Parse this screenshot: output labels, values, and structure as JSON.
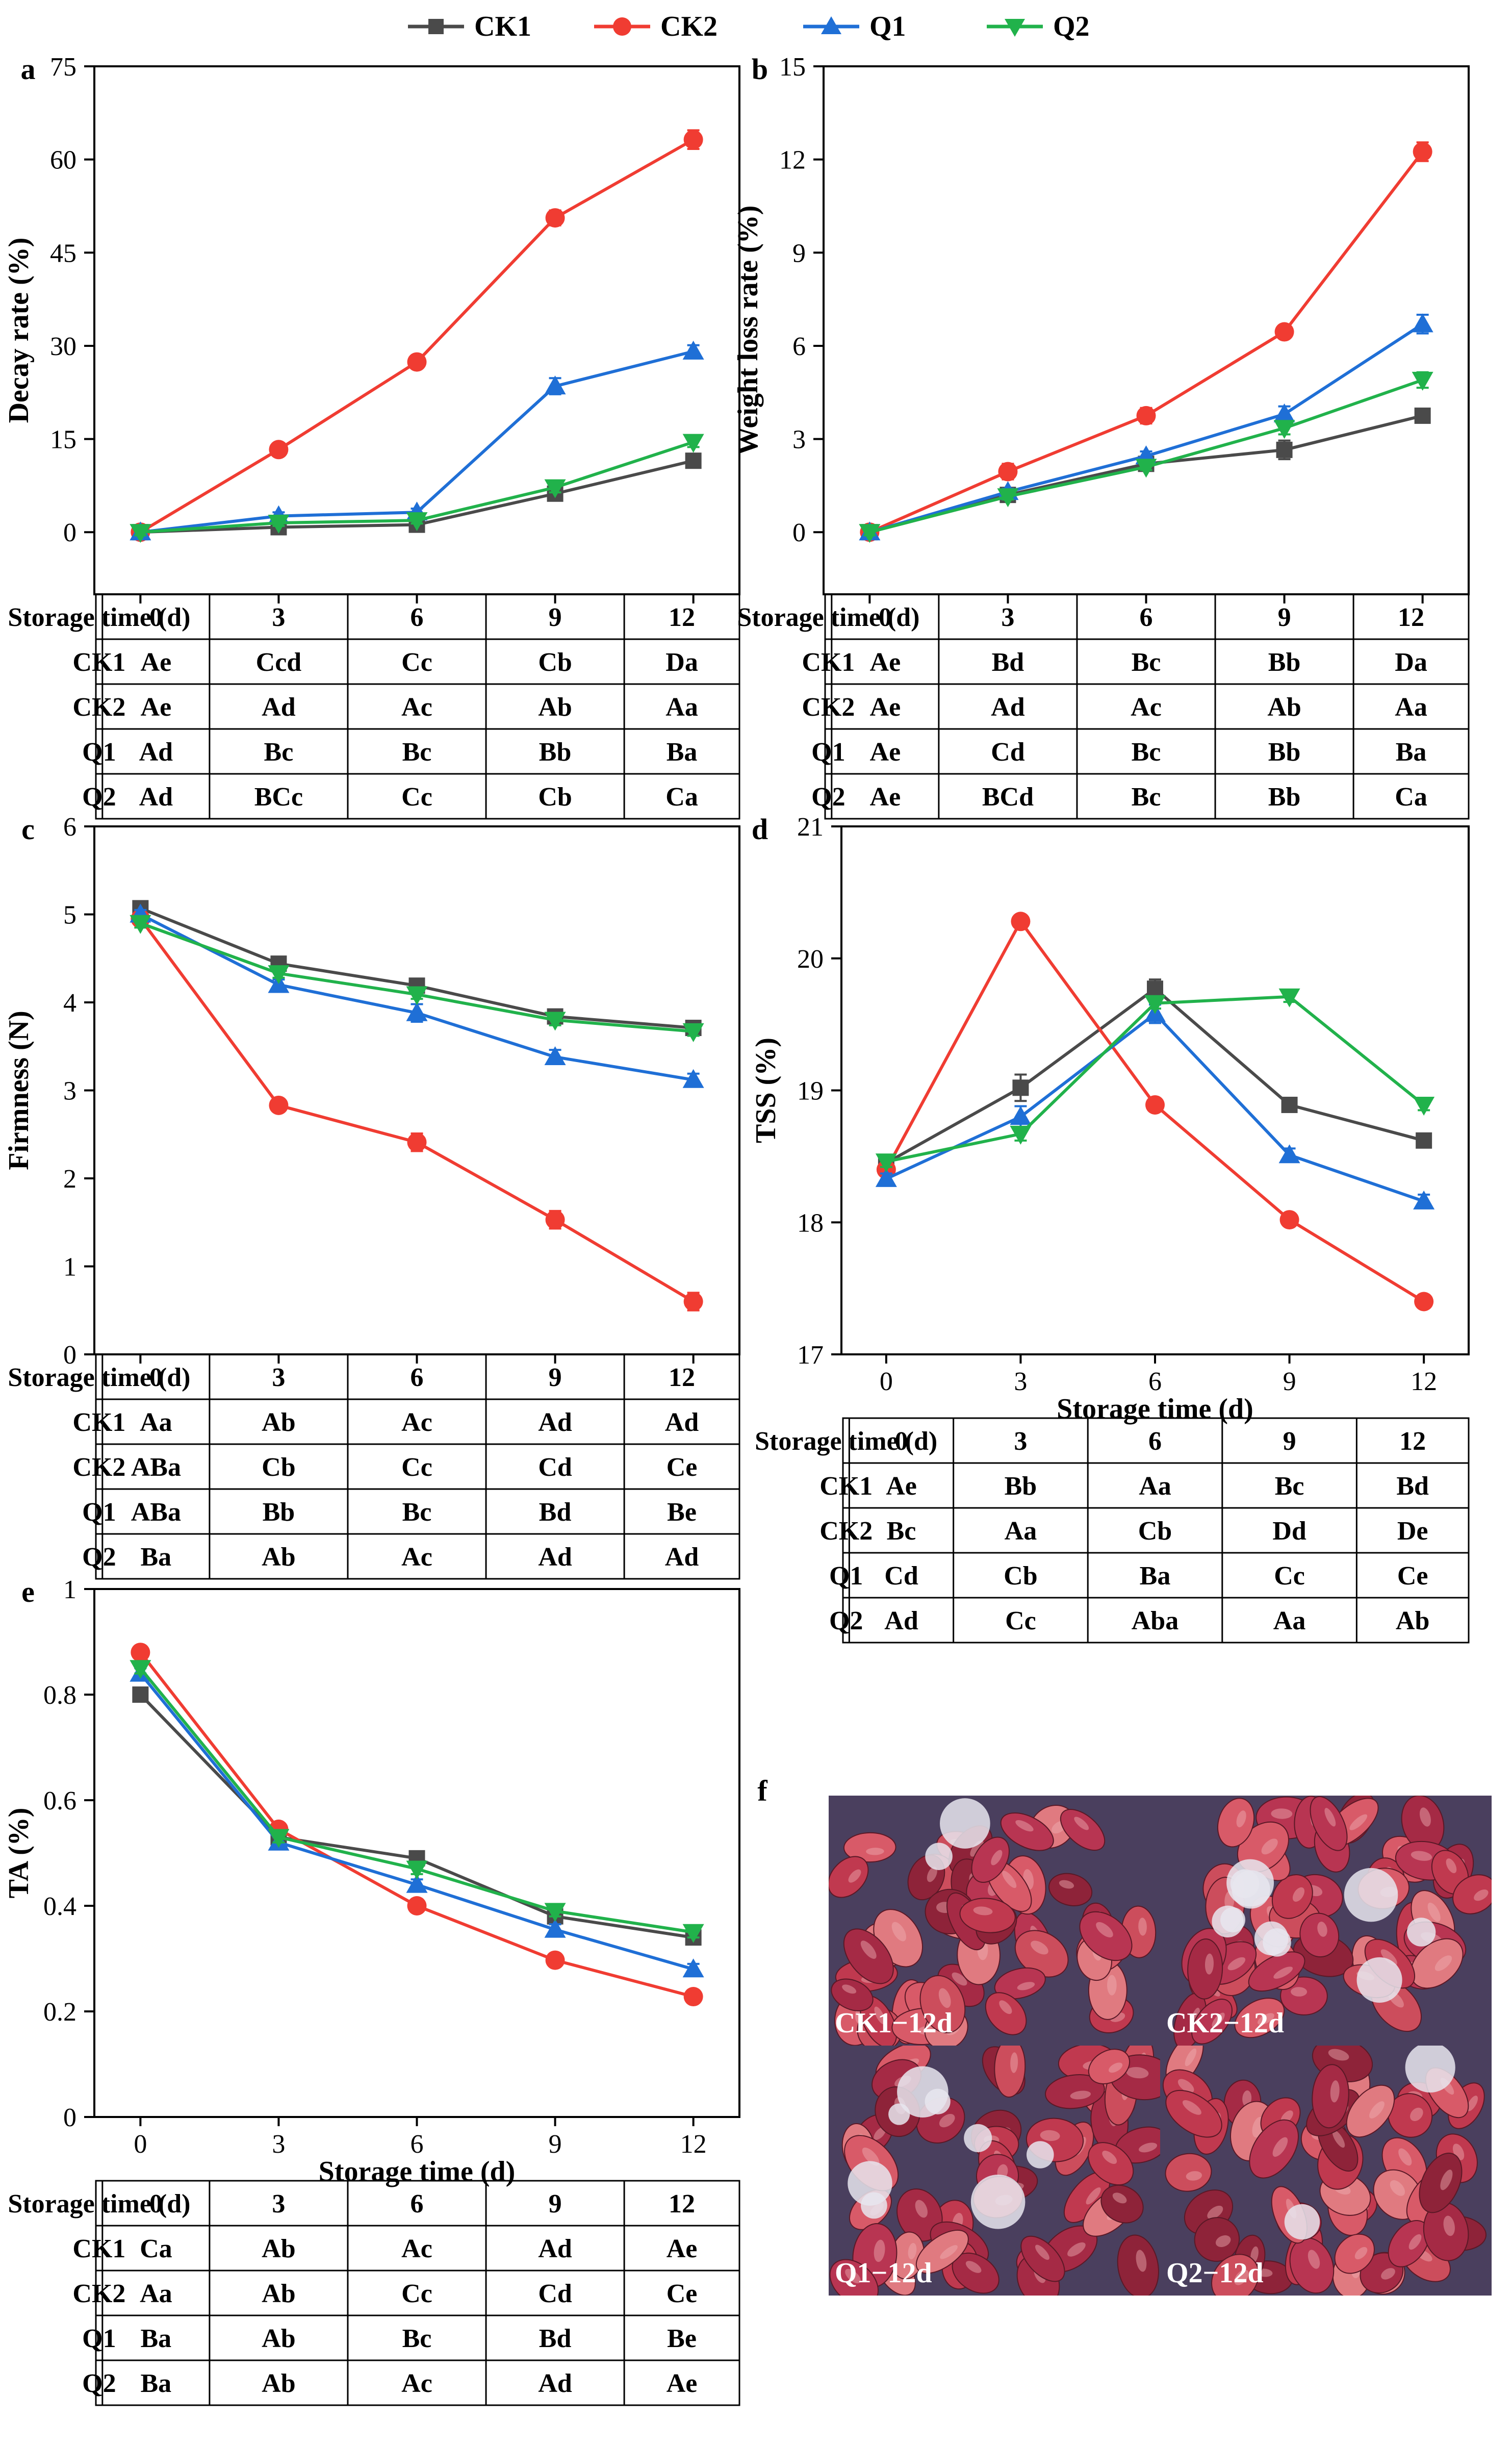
{
  "legend": {
    "entries": [
      {
        "name": "CK1",
        "color": "#4a4a4a",
        "marker": "square"
      },
      {
        "name": "CK2",
        "color": "#f03c32",
        "marker": "circle"
      },
      {
        "name": "Q1",
        "color": "#1f6fd6",
        "marker": "triangle-up"
      },
      {
        "name": "Q2",
        "color": "#21b24b",
        "marker": "triangle-down"
      }
    ]
  },
  "chart_data": [
    {
      "panel": "a",
      "type": "line",
      "ylabel": "Decay rate (%)",
      "xlabel": "",
      "x": [
        0,
        3,
        6,
        9,
        12
      ],
      "ylim": [
        -10,
        75
      ],
      "yticks": [
        0,
        15,
        30,
        45,
        60,
        75
      ],
      "series": [
        {
          "name": "CK1",
          "values": [
            0,
            0.8,
            1.2,
            6.2,
            11.5
          ],
          "errors": [
            0.5,
            0.5,
            0.5,
            0.8,
            1.0
          ]
        },
        {
          "name": "CK2",
          "values": [
            0,
            13.3,
            27.4,
            50.6,
            63.2
          ],
          "errors": [
            0.5,
            0.8,
            0.8,
            1.2,
            1.5
          ]
        },
        {
          "name": "Q1",
          "values": [
            0,
            2.6,
            3.2,
            23.5,
            29.1
          ],
          "errors": [
            0.5,
            0.6,
            0.6,
            1.3,
            1.0
          ]
        },
        {
          "name": "Q2",
          "values": [
            0,
            1.5,
            1.9,
            7.2,
            14.5
          ],
          "errors": [
            0.5,
            0.5,
            0.5,
            0.8,
            0.8
          ]
        }
      ],
      "table": {
        "header": [
          "Storage time (d)",
          "0",
          "3",
          "6",
          "9",
          "12"
        ],
        "rows": [
          [
            "CK1",
            "Ae",
            "Ccd",
            "Cc",
            "Cb",
            "Da"
          ],
          [
            "CK2",
            "Ae",
            "Ad",
            "Ac",
            "Ab",
            "Aa"
          ],
          [
            "Q1",
            "Ad",
            "Bc",
            "Bc",
            "Bb",
            "Ba"
          ],
          [
            "Q2",
            "Ad",
            "BCc",
            "Cc",
            "Cb",
            "Ca"
          ]
        ]
      }
    },
    {
      "panel": "b",
      "type": "line",
      "ylabel": "Weight loss rate (%)",
      "xlabel": "",
      "x": [
        0,
        3,
        6,
        9,
        12
      ],
      "ylim": [
        -2,
        15
      ],
      "yticks": [
        0,
        3,
        6,
        9,
        12,
        15
      ],
      "series": [
        {
          "name": "CK1",
          "values": [
            0,
            1.2,
            2.2,
            2.65,
            3.75
          ],
          "errors": [
            0.1,
            0.1,
            0.15,
            0.3,
            0.2
          ]
        },
        {
          "name": "CK2",
          "values": [
            0,
            1.95,
            3.75,
            6.45,
            12.25
          ],
          "errors": [
            0.1,
            0.25,
            0.25,
            0.2,
            0.3
          ]
        },
        {
          "name": "Q1",
          "values": [
            0,
            1.3,
            2.45,
            3.8,
            6.7
          ],
          "errors": [
            0.1,
            0.1,
            0.15,
            0.25,
            0.3
          ]
        },
        {
          "name": "Q2",
          "values": [
            0,
            1.15,
            2.1,
            3.35,
            4.9
          ],
          "errors": [
            0.1,
            0.1,
            0.1,
            0.2,
            0.25
          ]
        }
      ],
      "table": {
        "header": [
          "Storage time (d)",
          "0",
          "3",
          "6",
          "9",
          "12"
        ],
        "rows": [
          [
            "CK1",
            "Ae",
            "Bd",
            "Bc",
            "Bb",
            "Da"
          ],
          [
            "CK2",
            "Ae",
            "Ad",
            "Ac",
            "Ab",
            "Aa"
          ],
          [
            "Q1",
            "Ae",
            "Cd",
            "Bc",
            "Bb",
            "Ba"
          ],
          [
            "Q2",
            "Ae",
            "BCd",
            "Bc",
            "Bb",
            "Ca"
          ]
        ]
      }
    },
    {
      "panel": "c",
      "type": "line",
      "ylabel": "Firmness (N)",
      "xlabel": "",
      "x": [
        0,
        3,
        6,
        9,
        12
      ],
      "ylim": [
        0,
        6
      ],
      "yticks": [
        0,
        1,
        2,
        3,
        4,
        5,
        6
      ],
      "series": [
        {
          "name": "CK1",
          "values": [
            5.07,
            4.44,
            4.19,
            3.84,
            3.71
          ],
          "errors": [
            0.05,
            0.05,
            0.05,
            0.06,
            0.05
          ]
        },
        {
          "name": "CK2",
          "values": [
            4.95,
            2.83,
            2.41,
            1.53,
            0.6
          ],
          "errors": [
            0.05,
            0.05,
            0.1,
            0.1,
            0.1
          ]
        },
        {
          "name": "Q1",
          "values": [
            5.0,
            4.2,
            3.88,
            3.38,
            3.12
          ],
          "errors": [
            0.05,
            0.06,
            0.1,
            0.08,
            0.07
          ]
        },
        {
          "name": "Q2",
          "values": [
            4.9,
            4.33,
            4.09,
            3.8,
            3.67
          ],
          "errors": [
            0.05,
            0.05,
            0.05,
            0.06,
            0.05
          ]
        }
      ],
      "table": {
        "header": [
          "Storage time (d)",
          "0",
          "3",
          "6",
          "9",
          "12"
        ],
        "rows": [
          [
            "CK1",
            "Aa",
            "Ab",
            "Ac",
            "Ad",
            "Ad"
          ],
          [
            "CK2",
            "ABa",
            "Cb",
            "Cc",
            "Cd",
            "Ce"
          ],
          [
            "Q1",
            "ABa",
            "Bb",
            "Bc",
            "Bd",
            "Be"
          ],
          [
            "Q2",
            "Ba",
            "Ab",
            "Ac",
            "Ad",
            "Ad"
          ]
        ]
      }
    },
    {
      "panel": "d",
      "type": "line",
      "ylabel": "TSS (%)",
      "xlabel": "Storage time (d)",
      "x": [
        0,
        3,
        6,
        9,
        12
      ],
      "ylim": [
        17,
        21
      ],
      "yticks": [
        17,
        18,
        19,
        20,
        21
      ],
      "series": [
        {
          "name": "CK1",
          "values": [
            18.45,
            19.02,
            19.77,
            18.89,
            18.62
          ],
          "errors": [
            0.04,
            0.1,
            0.07,
            0.03,
            0.03
          ]
        },
        {
          "name": "CK2",
          "values": [
            18.4,
            20.28,
            18.89,
            18.02,
            17.4
          ],
          "errors": [
            0.04,
            0.03,
            0.03,
            0.03,
            0.03
          ]
        },
        {
          "name": "Q1",
          "values": [
            18.33,
            18.8,
            19.58,
            18.51,
            18.16
          ],
          "errors": [
            0.04,
            0.08,
            0.07,
            0.05,
            0.05
          ]
        },
        {
          "name": "Q2",
          "values": [
            18.46,
            18.67,
            19.66,
            19.71,
            18.89
          ],
          "errors": [
            0.04,
            0.05,
            0.04,
            0.04,
            0.04
          ]
        }
      ],
      "table": {
        "header": [
          "Storage time (d)",
          "0",
          "3",
          "6",
          "9",
          "12"
        ],
        "rows": [
          [
            "CK1",
            "Ae",
            "Bb",
            "Aa",
            "Bc",
            "Bd"
          ],
          [
            "CK2",
            "Bc",
            "Aa",
            "Cb",
            "Dd",
            "De"
          ],
          [
            "Q1",
            "Cd",
            "Cb",
            "Ba",
            "Cc",
            "Ce"
          ],
          [
            "Q2",
            "Ad",
            "Cc",
            "Aba",
            "Aa",
            "Ab"
          ]
        ]
      }
    },
    {
      "panel": "e",
      "type": "line",
      "ylabel": "TA (%)",
      "xlabel": "Storage time (d)",
      "x": [
        0,
        3,
        6,
        9,
        12
      ],
      "ylim": [
        0,
        1.0
      ],
      "yticks": [
        0,
        0.2,
        0.4,
        0.6,
        0.8,
        1.0
      ],
      "series": [
        {
          "name": "CK1",
          "values": [
            0.8,
            0.53,
            0.49,
            0.38,
            0.34
          ],
          "errors": [
            0.01,
            0.01,
            0.01,
            0.01,
            0.01
          ]
        },
        {
          "name": "CK2",
          "values": [
            0.88,
            0.545,
            0.4,
            0.297,
            0.228
          ],
          "errors": [
            0.01,
            0.01,
            0.01,
            0.01,
            0.01
          ]
        },
        {
          "name": "Q1",
          "values": [
            0.84,
            0.52,
            0.44,
            0.355,
            0.28
          ],
          "errors": [
            0.01,
            0.01,
            0.01,
            0.01,
            0.01
          ]
        },
        {
          "name": "Q2",
          "values": [
            0.85,
            0.53,
            0.47,
            0.39,
            0.35
          ],
          "errors": [
            0.01,
            0.01,
            0.01,
            0.01,
            0.01
          ]
        }
      ],
      "table": {
        "header": [
          "Storage time (d)",
          "0",
          "3",
          "6",
          "9",
          "12"
        ],
        "rows": [
          [
            "CK1",
            "Ca",
            "Ab",
            "Ac",
            "Ad",
            "Ae"
          ],
          [
            "CK2",
            "Aa",
            "Ab",
            "Cc",
            "Cd",
            "Ce"
          ],
          [
            "Q1",
            "Ba",
            "Ab",
            "Bc",
            "Bd",
            "Be"
          ],
          [
            "Q2",
            "Ba",
            "Ab",
            "Ac",
            "Ad",
            "Ae"
          ]
        ]
      }
    }
  ],
  "photo": {
    "panel": "f",
    "labels": [
      "CK1−12d",
      "CK2−12d",
      "Q1−12d",
      "Q2−12d"
    ]
  }
}
